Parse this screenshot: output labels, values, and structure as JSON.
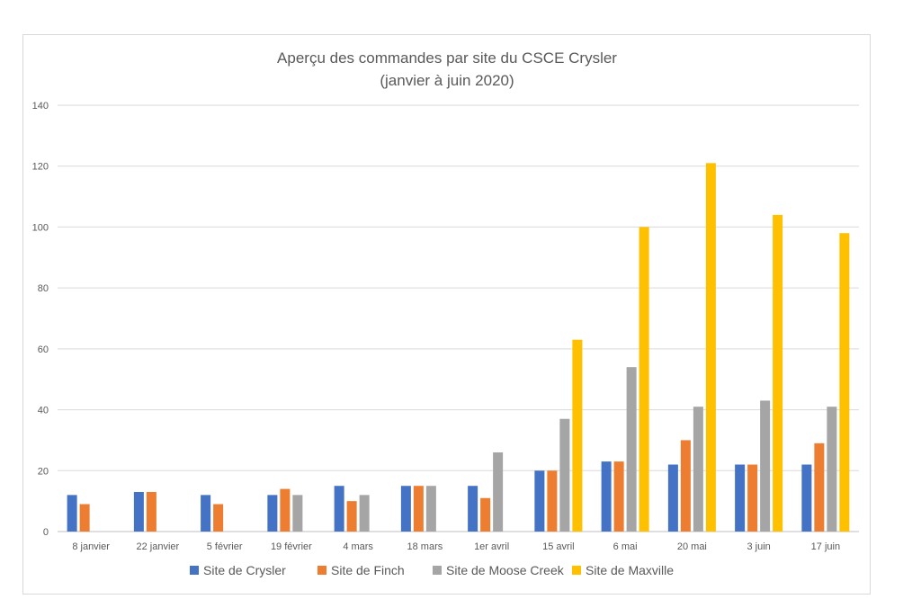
{
  "chart_data": {
    "type": "bar",
    "title": "Aperçu des commandes par site du CSCE Crysler",
    "subtitle": "(janvier à juin 2020)",
    "xlabel": "",
    "ylabel": "",
    "ylim": [
      0,
      140
    ],
    "yticks": [
      "0",
      "20",
      "40",
      "60",
      "80",
      "100",
      "120",
      "140"
    ],
    "grid": true,
    "legend_position": "bottom",
    "categories": [
      "8 janvier",
      "22 janvier",
      "5 février",
      "19 février",
      "4 mars",
      "18 mars",
      "1er avril",
      "15 avril",
      "6 mai",
      "20 mai",
      "3 juin",
      "17 juin"
    ],
    "series": [
      {
        "name": "Site de Crysler",
        "color": "#4472c4",
        "values": [
          12,
          13,
          12,
          12,
          15,
          15,
          15,
          20,
          23,
          22,
          22,
          22
        ]
      },
      {
        "name": "Site de Finch",
        "color": "#ed7d31",
        "values": [
          9,
          13,
          9,
          14,
          10,
          15,
          11,
          20,
          23,
          30,
          22,
          29
        ]
      },
      {
        "name": "Site de Moose Creek",
        "color": "#a5a5a5",
        "values": [
          null,
          null,
          null,
          12,
          12,
          15,
          26,
          37,
          54,
          41,
          43,
          41
        ]
      },
      {
        "name": "Site de Maxville",
        "color": "#ffc000",
        "values": [
          null,
          null,
          null,
          null,
          null,
          null,
          null,
          63,
          100,
          121,
          104,
          98
        ]
      }
    ]
  }
}
